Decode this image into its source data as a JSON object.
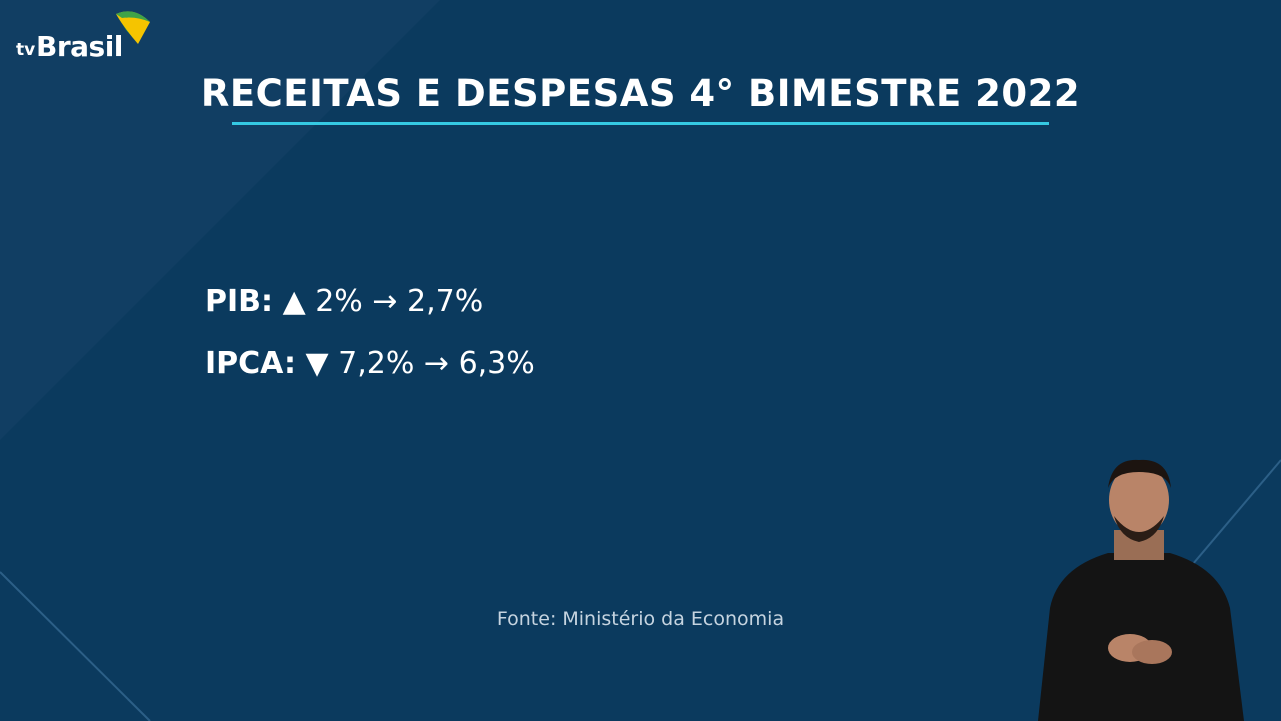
{
  "logo": {
    "tv": "tv",
    "brand": "Brasil"
  },
  "title": "RECEITAS E DESPESAS 4° BIMESTRE 2022",
  "stats": [
    {
      "label": "PIB:",
      "direction_icon": "triangle-up-icon",
      "glyph": "▲",
      "from": "2%",
      "arrow": "→",
      "to": "2,7%"
    },
    {
      "label": "IPCA:",
      "direction_icon": "triangle-down-icon",
      "glyph": "▼",
      "from": "7,2%",
      "arrow": "→",
      "to": "6,3%"
    }
  ],
  "source": "Fonte: Ministério da Economia",
  "colors": {
    "background": "#0b3a5e",
    "accent_line": "#35c9e3",
    "text": "#ffffff"
  }
}
